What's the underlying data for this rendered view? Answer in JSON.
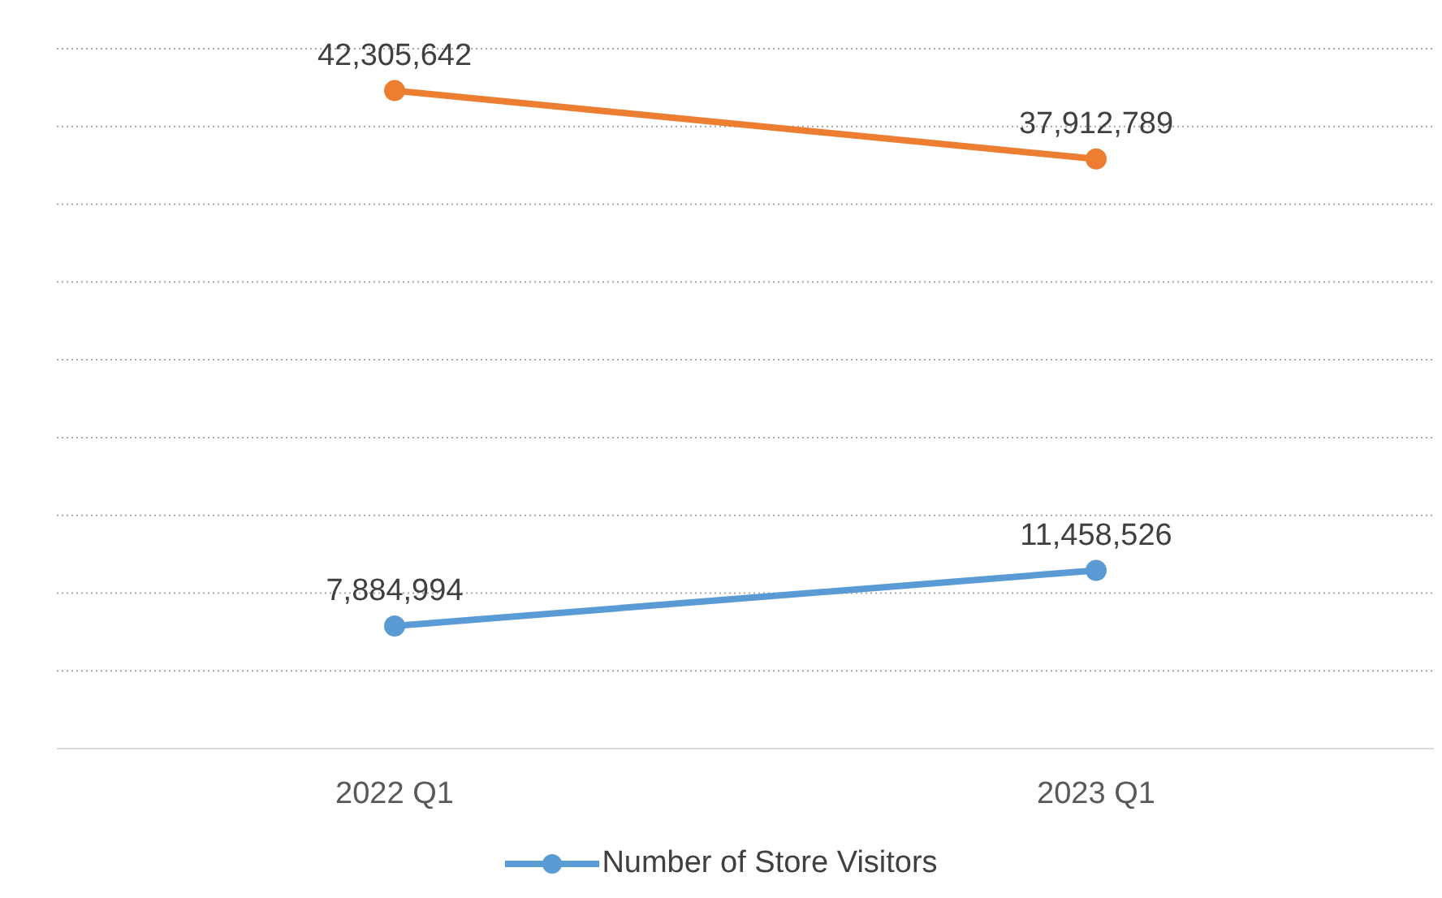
{
  "chart_data": {
    "type": "line",
    "categories": [
      "2022 Q1",
      "2023 Q1"
    ],
    "series": [
      {
        "name": "Number of Store Visitors",
        "color": "#5b9bd5",
        "values": [
          7884994,
          11458526
        ],
        "value_labels": [
          "7,884,994",
          "11,458,526"
        ]
      },
      {
        "color": "#ed7d31",
        "values": [
          42305642,
          37912789
        ],
        "value_labels": [
          "42,305,642",
          "37,912,789"
        ]
      }
    ],
    "grid": "y",
    "tick_labels": "x",
    "legend": "bottom",
    "marker": "circle",
    "line_style": "solid"
  }
}
